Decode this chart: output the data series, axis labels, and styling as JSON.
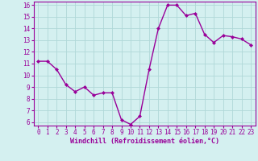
{
  "x": [
    0,
    1,
    2,
    3,
    4,
    5,
    6,
    7,
    8,
    9,
    10,
    11,
    12,
    13,
    14,
    15,
    16,
    17,
    18,
    19,
    20,
    21,
    22,
    23
  ],
  "y": [
    11.2,
    11.2,
    10.5,
    9.2,
    8.6,
    9.0,
    8.3,
    8.5,
    8.5,
    6.2,
    5.8,
    6.5,
    10.5,
    14.0,
    16.0,
    16.0,
    15.1,
    15.3,
    13.5,
    12.8,
    13.4,
    13.3,
    13.1,
    12.6
  ],
  "line_color": "#990099",
  "marker": "D",
  "marker_size": 2.0,
  "bg_color": "#d4f0f0",
  "grid_color": "#b0d8d8",
  "xlabel": "Windchill (Refroidissement éolien,°C)",
  "xlabel_color": "#990099",
  "tick_color": "#990099",
  "spine_color": "#990099",
  "ylim": [
    6,
    16
  ],
  "xlim": [
    -0.5,
    23.5
  ],
  "yticks": [
    6,
    7,
    8,
    9,
    10,
    11,
    12,
    13,
    14,
    15,
    16
  ],
  "xticks": [
    0,
    1,
    2,
    3,
    4,
    5,
    6,
    7,
    8,
    9,
    10,
    11,
    12,
    13,
    14,
    15,
    16,
    17,
    18,
    19,
    20,
    21,
    22,
    23
  ],
  "linewidth": 1.0,
  "tick_labelsize": 5.5,
  "xlabel_fontsize": 6.0
}
